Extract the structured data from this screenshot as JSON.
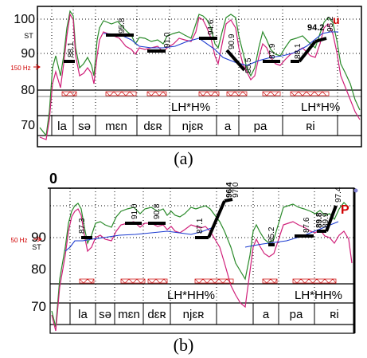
{
  "panels": [
    {
      "id": "a",
      "caption": "(a)",
      "axis": {
        "unit": "ST",
        "ticks": [
          "100",
          "90",
          "80",
          "70"
        ],
        "ref_label": "150 Hz"
      },
      "targets": [
        {
          "label": "88.1",
          "level": 87.5
        },
        {
          "label": "95.8",
          "level": 96.0
        },
        {
          "label": "91.0",
          "level": 91.0
        },
        {
          "label": "94.6",
          "level": 94.5
        },
        {
          "label": "90.9",
          "level": 91.0
        },
        {
          "label": "85.5",
          "level": 85.5
        },
        {
          "label": "87.9",
          "level": 88.0
        },
        {
          "label": "88.1",
          "level": 88.0
        },
        {
          "label": "94.2",
          "level": 94.5
        },
        {
          "label": "95.2",
          "level": 95.2
        }
      ],
      "marker": "u",
      "tones": [
        "LH*H%",
        "LH*H%"
      ],
      "syllables": [
        "la",
        "sə",
        "mɛn",
        "dɛʀ",
        "njɛʀ",
        "a",
        "pa",
        "ʀi"
      ]
    },
    {
      "id": "b",
      "caption": "(b)",
      "axis": {
        "unit": "ST",
        "ticks": [
          "90",
          "80",
          "70"
        ],
        "ref_label": "50 Hz",
        "corner_label": "0"
      },
      "targets": [
        {
          "label": "87.3",
          "level": 87.0
        },
        {
          "label": "91.0",
          "level": 91.0
        },
        {
          "label": "90.8",
          "level": 91.0
        },
        {
          "label": "87.1",
          "level": 87.0
        },
        {
          "label": "96.4",
          "level": 96.5
        },
        {
          "label": "97.0",
          "level": 97.0
        },
        {
          "label": "85.2",
          "level": 85.0
        },
        {
          "label": "87.6",
          "level": 87.5
        },
        {
          "label": "89.8",
          "level": 89.5
        },
        {
          "label": "89.9",
          "level": 90.0
        },
        {
          "label": "97.4",
          "level": 97.0
        }
      ],
      "marker": "P",
      "tones": [
        "LH*HH%",
        "LH*HH%"
      ],
      "syllables": [
        "la",
        "sə",
        "mɛn",
        "dɛʀ",
        "njɛʀ",
        "a",
        "pa",
        "ʀi"
      ]
    }
  ]
}
